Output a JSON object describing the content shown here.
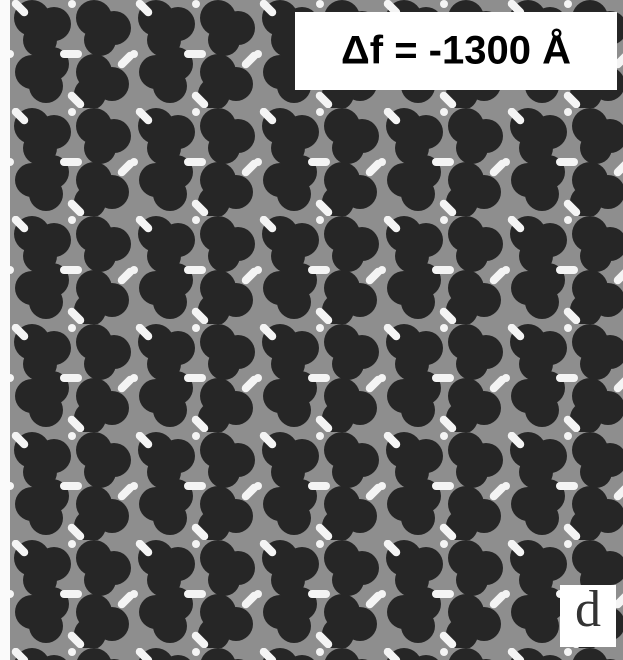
{
  "label": "Δf = -1300 Å",
  "panel": "d"
}
